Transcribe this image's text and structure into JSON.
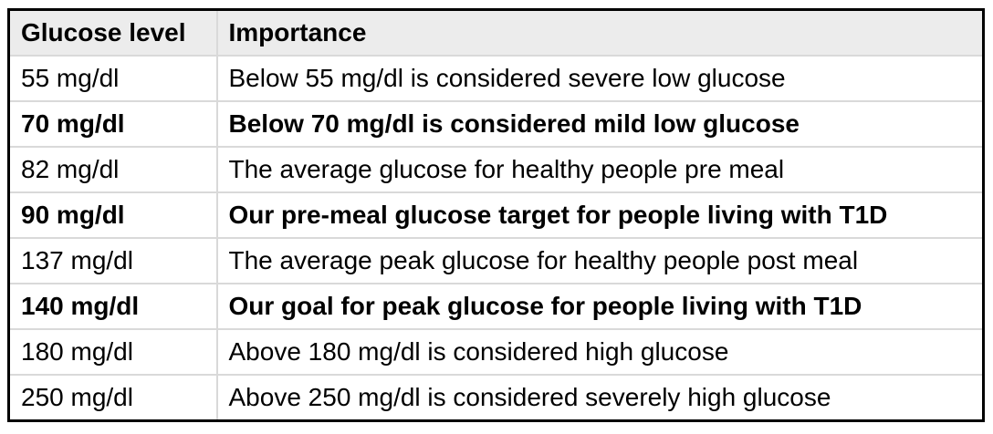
{
  "table": {
    "columns": [
      "Glucose level",
      "Importance"
    ],
    "rows": [
      {
        "level": "55 mg/dl",
        "importance": "Below 55 mg/dl is considered severe low glucose",
        "bold": false
      },
      {
        "level": "70 mg/dl",
        "importance": "Below 70 mg/dl is considered mild low glucose",
        "bold": true
      },
      {
        "level": "82 mg/dl",
        "importance": "The average glucose for healthy people pre meal",
        "bold": false
      },
      {
        "level": "90 mg/dl",
        "importance": "Our pre-meal glucose target for people living with T1D",
        "bold": true
      },
      {
        "level": "137 mg/dl",
        "importance": "The average peak glucose for healthy people post meal",
        "bold": false
      },
      {
        "level": "140 mg/dl",
        "importance": "Our goal for peak glucose for people living with T1D",
        "bold": true
      },
      {
        "level": "180 mg/dl",
        "importance": "Above 180 mg/dl is considered high glucose",
        "bold": false
      },
      {
        "level": "250 mg/dl",
        "importance": "Above 250 mg/dl is considered severely high glucose",
        "bold": false
      }
    ],
    "colors": {
      "outer_border": "#000000",
      "inner_border": "#d9d9d9",
      "header_bg": "#ececec",
      "text": "#000000"
    }
  }
}
